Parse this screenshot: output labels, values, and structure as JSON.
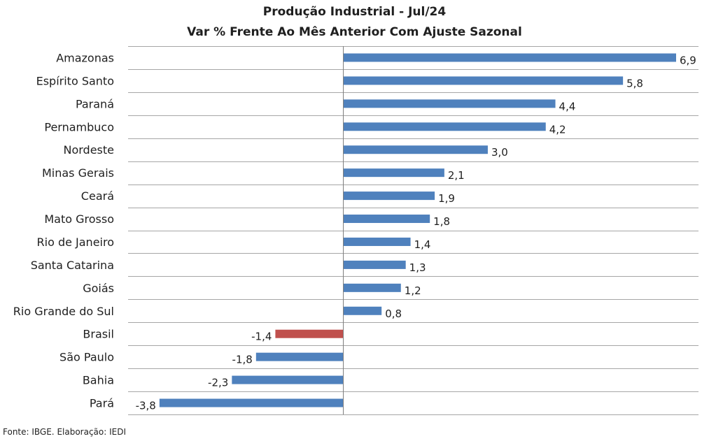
{
  "colors": {
    "positive": "#4F81BD",
    "highlight": "#C0504D",
    "gridline": "#A6A6A6",
    "axis": "#7F7F7F",
    "text": "#1f1f1f"
  },
  "chart_data": {
    "type": "bar",
    "orientation": "horizontal",
    "title": "Produção Industrial - Jul/24",
    "subtitle": "Var % Frente Ao Mês Anterior Com Ajuste Sazonal",
    "xlabel": "",
    "ylabel": "",
    "xlim": [
      -4.8,
      7.2
    ],
    "grid": true,
    "legend": "none",
    "highlighted_category": "Brasil",
    "categories": [
      "Amazonas",
      "Espírito Santo",
      "Paraná",
      "Pernambuco",
      "Nordeste",
      "Minas Gerais",
      "Ceará",
      "Mato Grosso",
      "Rio de Janeiro",
      "Santa Catarina",
      "Goiás",
      "Rio Grande do Sul",
      "Brasil",
      "São Paulo",
      "Bahia",
      "Pará"
    ],
    "values": [
      6.9,
      5.8,
      4.4,
      4.2,
      3.0,
      2.1,
      1.9,
      1.8,
      1.4,
      1.3,
      1.2,
      0.8,
      -1.4,
      -1.8,
      -2.3,
      -3.8
    ],
    "value_labels": [
      "6,9",
      "5,8",
      "4,4",
      "4,2",
      "3,0",
      "2,1",
      "1,9",
      "1,8",
      "1,4",
      "1,3",
      "1,2",
      "0,8",
      "-1,4",
      "-1,8",
      "-2,3",
      "-3,8"
    ]
  },
  "footer": {
    "source": "Fonte: IBGE. Elaboração: IEDI"
  }
}
